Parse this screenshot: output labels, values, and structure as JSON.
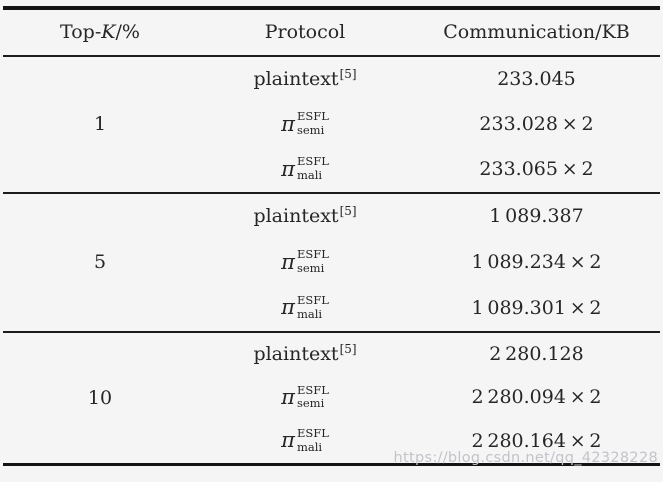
{
  "table": {
    "header": {
      "topk_pre": "Top-",
      "topk_k": "K",
      "topk_post": "/%",
      "protocol": "Protocol",
      "communication": "Communication/KB"
    },
    "groups": [
      {
        "top_k": "1",
        "rows": [
          {
            "protocol": {
              "base": "plaintext",
              "ref": "[5]"
            },
            "value": "233.045"
          },
          {
            "protocol": {
              "pi": "π",
              "sup": "ESFL",
              "sub": "semi"
            },
            "value": "233.028 × 2"
          },
          {
            "protocol": {
              "pi": "π",
              "sup": "ESFL",
              "sub": "mali"
            },
            "value": "233.065 × 2"
          }
        ]
      },
      {
        "top_k": "5",
        "rows": [
          {
            "protocol": {
              "base": "plaintext",
              "ref": "[5]"
            },
            "value": "1 089.387"
          },
          {
            "protocol": {
              "pi": "π",
              "sup": "ESFL",
              "sub": "semi"
            },
            "value": "1 089.234 × 2"
          },
          {
            "protocol": {
              "pi": "π",
              "sup": "ESFL",
              "sub": "mali"
            },
            "value": "1 089.301 × 2"
          }
        ]
      },
      {
        "top_k": "10",
        "rows": [
          {
            "protocol": {
              "base": "plaintext",
              "ref": "[5]"
            },
            "value": "2 280.128"
          },
          {
            "protocol": {
              "pi": "π",
              "sup": "ESFL",
              "sub": "semi"
            },
            "value": "2 280.094 × 2"
          },
          {
            "protocol": {
              "pi": "π",
              "sup": "ESFL",
              "sub": "mali"
            },
            "value": "2 280.164 × 2"
          }
        ]
      }
    ]
  },
  "watermark": {
    "text": "https://blog.csdn.net/qq_42328228"
  },
  "colors": {
    "background": "#f5f5f6",
    "text": "#262626",
    "rule": "#141414",
    "watermark": "#c3c3ca"
  }
}
